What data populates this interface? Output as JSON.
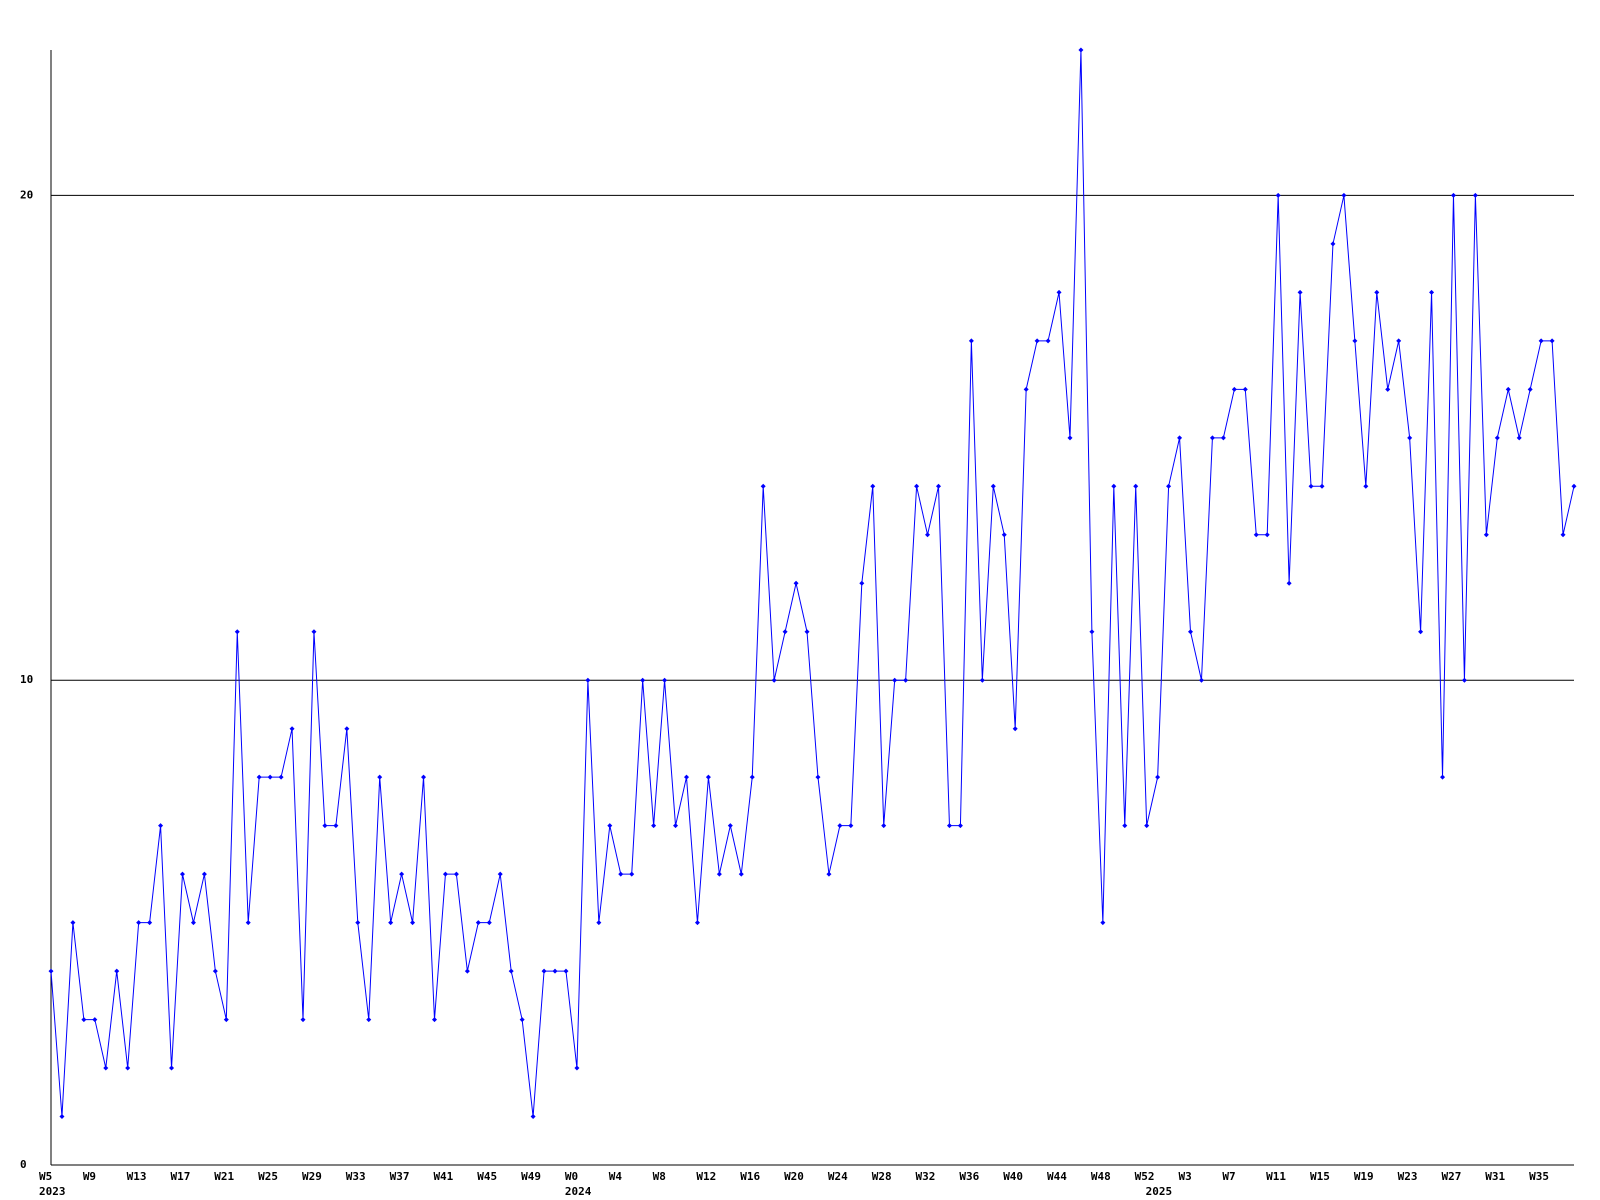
{
  "chart_data": {
    "type": "line",
    "color": "#0000ff",
    "grid": true,
    "ylim": [
      0,
      23
    ],
    "yticks": [
      0,
      10,
      20
    ],
    "categories": [
      "W5",
      null,
      null,
      null,
      "W9",
      null,
      null,
      null,
      "W13",
      null,
      null,
      null,
      "W17",
      null,
      null,
      null,
      "W21",
      null,
      null,
      null,
      "W25",
      null,
      null,
      null,
      "W29",
      null,
      null,
      null,
      "W33",
      null,
      null,
      null,
      "W37",
      null,
      null,
      null,
      "W41",
      null,
      null,
      null,
      "W45",
      null,
      null,
      null,
      "W49",
      null,
      null,
      null,
      "W0",
      null,
      null,
      null,
      "W4",
      null,
      null,
      null,
      "W8",
      null,
      null,
      null,
      "W12",
      null,
      null,
      null,
      "W16",
      null,
      null,
      null,
      "W20",
      null,
      null,
      null,
      "W24",
      null,
      null,
      null,
      "W28",
      null,
      null,
      null,
      "W32",
      null,
      null,
      null,
      "W36",
      null,
      null,
      null,
      "W40",
      null,
      null,
      null,
      "W44",
      null,
      null,
      null,
      "W48",
      null,
      null,
      null,
      "W52",
      null,
      null,
      null,
      "W3",
      null,
      null,
      null,
      "W7",
      null,
      null,
      null,
      "W11",
      null,
      null,
      null,
      "W15",
      null,
      null,
      null,
      "W19",
      null,
      null,
      null,
      "W23",
      null,
      null,
      null,
      "W27",
      null,
      null,
      null,
      "W31",
      null,
      null,
      null,
      "W35",
      null,
      null,
      null
    ],
    "x_years": [
      "2023",
      null,
      null,
      null,
      null,
      null,
      null,
      null,
      null,
      null,
      null,
      null,
      null,
      null,
      null,
      null,
      null,
      null,
      null,
      null,
      null,
      null,
      null,
      null,
      null,
      null,
      null,
      null,
      null,
      null,
      null,
      null,
      null,
      null,
      null,
      null,
      null,
      null,
      null,
      null,
      null,
      null,
      null,
      null,
      null,
      null,
      null,
      null,
      "2024",
      null,
      null,
      null,
      null,
      null,
      null,
      null,
      null,
      null,
      null,
      null,
      null,
      null,
      null,
      null,
      null,
      null,
      null,
      null,
      null,
      null,
      null,
      null,
      null,
      null,
      null,
      null,
      null,
      null,
      null,
      null,
      null,
      null,
      null,
      null,
      null,
      null,
      null,
      null,
      null,
      null,
      null,
      null,
      null,
      null,
      null,
      null,
      null,
      null,
      null,
      null,
      null,
      "2025",
      null,
      null,
      null,
      null,
      null,
      null,
      null,
      null,
      null,
      null,
      null,
      null,
      null,
      null,
      null,
      null,
      null,
      null,
      null,
      null,
      null,
      null,
      null,
      null,
      null,
      null,
      null,
      null,
      null,
      null,
      null,
      null,
      null,
      null,
      null,
      null,
      null,
      null
    ],
    "values": [
      4,
      1,
      5,
      3,
      3,
      2,
      4,
      2,
      5,
      5,
      7,
      2,
      6,
      5,
      6,
      4,
      3,
      11,
      5,
      8,
      8,
      8,
      9,
      3,
      11,
      7,
      7,
      9,
      5,
      3,
      8,
      5,
      6,
      5,
      8,
      3,
      6,
      6,
      4,
      5,
      5,
      6,
      4,
      3,
      1,
      4,
      4,
      4,
      2,
      10,
      5,
      7,
      6,
      6,
      10,
      7,
      10,
      7,
      8,
      5,
      8,
      6,
      7,
      6,
      8,
      14,
      10,
      11,
      12,
      11,
      8,
      6,
      7,
      7,
      12,
      14,
      7,
      10,
      10,
      14,
      13,
      14,
      7,
      7,
      17,
      10,
      14,
      13,
      9,
      16,
      17,
      17,
      18,
      15,
      23,
      11,
      5,
      14,
      7,
      14,
      7,
      8,
      14,
      15,
      11,
      10,
      15,
      15,
      16,
      16,
      13,
      13,
      20,
      12,
      18,
      14,
      14,
      19,
      20,
      17,
      14,
      18,
      16,
      17,
      15,
      11,
      18,
      8,
      20,
      10,
      20,
      13,
      15,
      16,
      15,
      16,
      17,
      17,
      13,
      14
    ]
  }
}
